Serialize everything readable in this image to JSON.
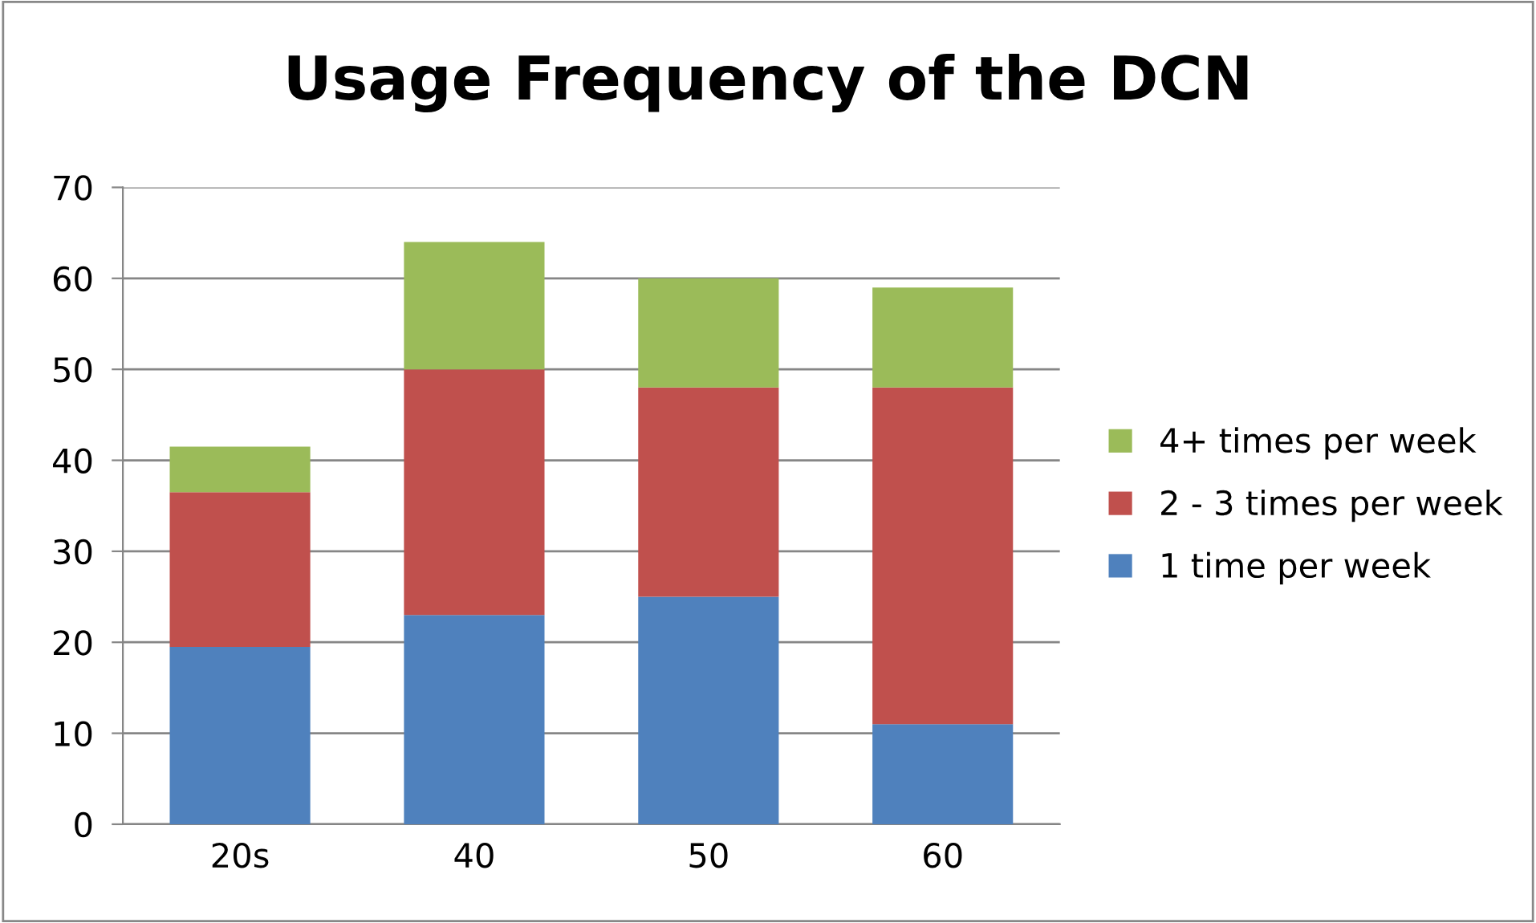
{
  "chart_data": {
    "type": "bar",
    "title": "Usage Frequency of the DCN",
    "categories": [
      "20s",
      "40",
      "50",
      "60"
    ],
    "series": [
      {
        "name": "1 time per week",
        "color": "#4f81bd",
        "values": [
          19.5,
          23,
          25,
          11
        ]
      },
      {
        "name": "2 - 3 times per week",
        "color": "#c0504d",
        "values": [
          17,
          27,
          23,
          37
        ]
      },
      {
        "name": "4+ times per week",
        "color": "#9bbb59",
        "values": [
          5,
          14,
          12,
          11
        ]
      }
    ],
    "stacked": true,
    "ylim": [
      0,
      70
    ],
    "yticks": [
      0,
      10,
      20,
      30,
      40,
      50,
      60,
      70
    ],
    "grid": "y",
    "legend": "right"
  }
}
